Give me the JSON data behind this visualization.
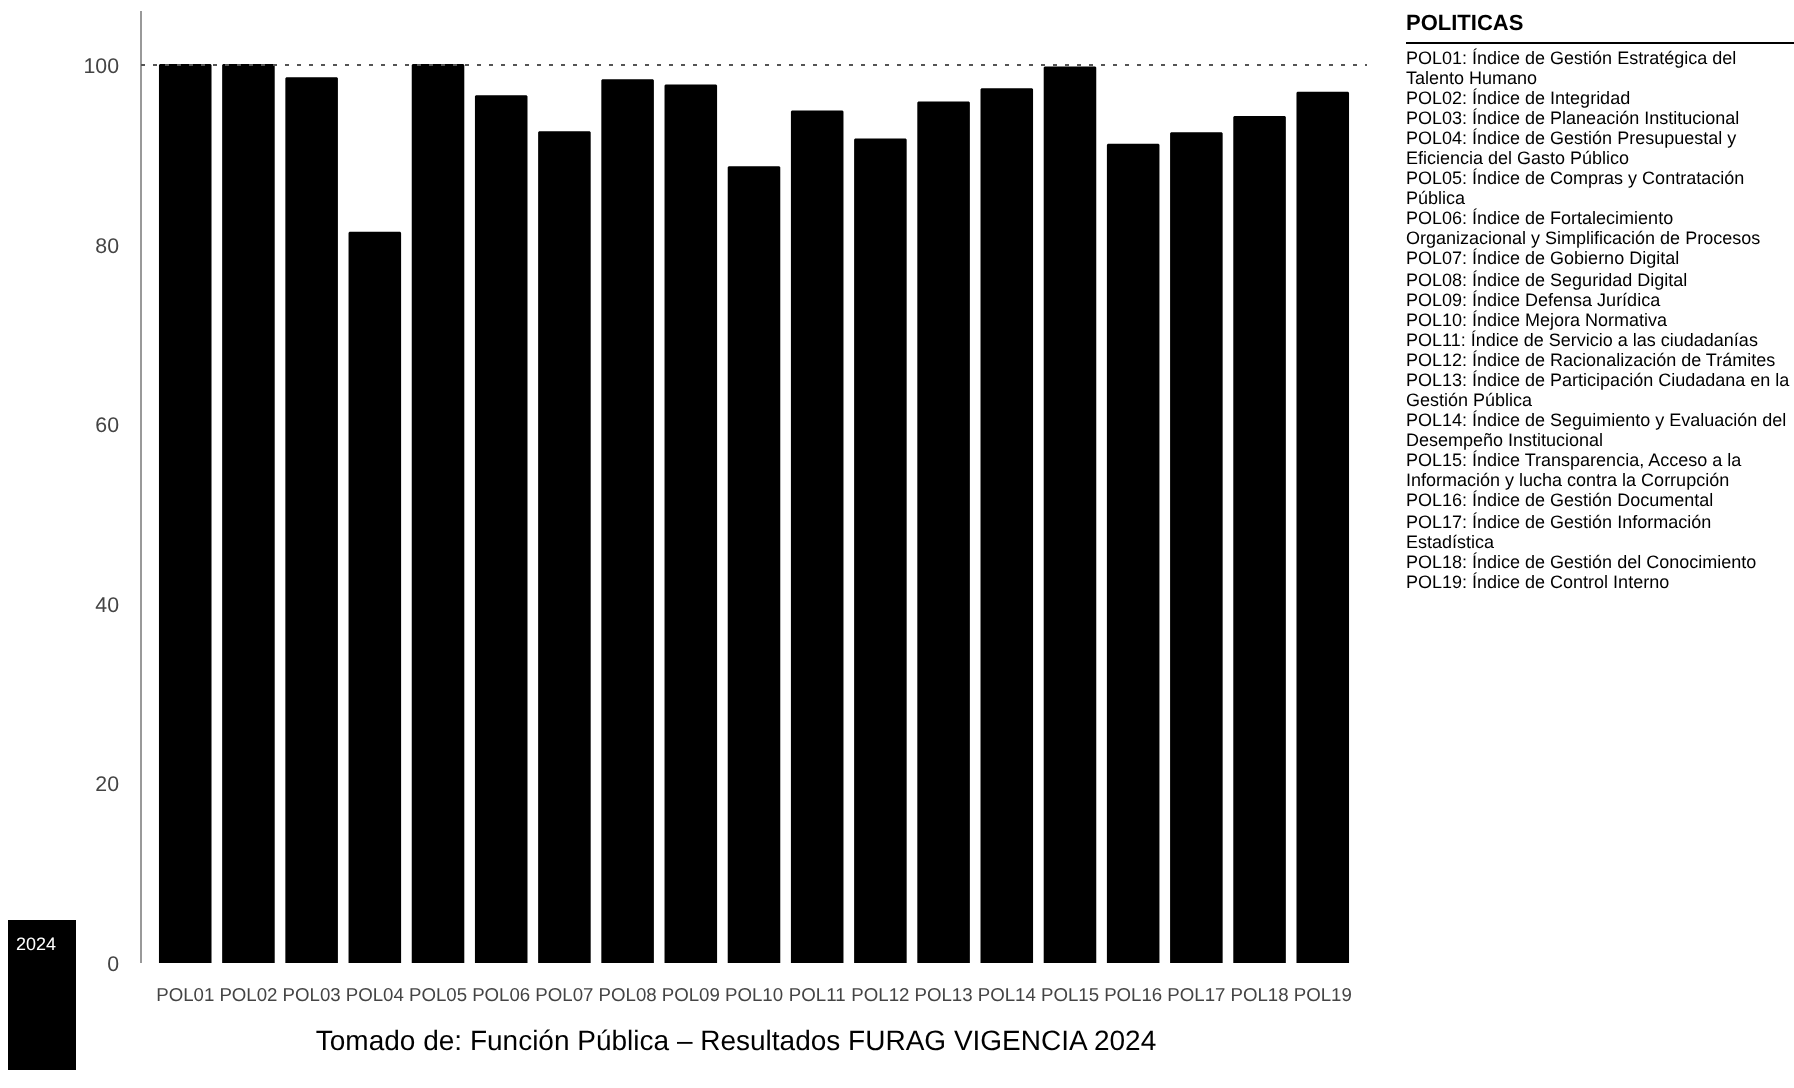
{
  "chart_data": {
    "type": "bar",
    "categories": [
      "POL01",
      "POL02",
      "POL03",
      "POL04",
      "POL05",
      "POL06",
      "POL07",
      "POL08",
      "POL09",
      "POL10",
      "POL11",
      "POL12",
      "POL13",
      "POL14",
      "POL15",
      "POL16",
      "POL17",
      "POL18",
      "POL19"
    ],
    "values": [
      100,
      100,
      98.5,
      81.3,
      100,
      96.5,
      92.5,
      98.3,
      97.7,
      88.6,
      94.8,
      91.7,
      95.8,
      97.3,
      99.7,
      91.1,
      92.4,
      94.2,
      96.9
    ],
    "color": "#000000",
    "ylim": [
      0,
      106
    ],
    "yticks": [
      0,
      20,
      40,
      60,
      80,
      100
    ],
    "grid": false,
    "ref_lines": [
      {
        "axis": "y",
        "value": 100,
        "line_style": "dotted",
        "color": "#555555"
      }
    ],
    "legend_title": "POLITICAS",
    "annotations": [
      "2024",
      "POL01: Índice de Gestión Estratégica del Talento Humano",
      "POL02: Índice de Integridad",
      "POL03: Índice de Planeación Institucional",
      "POL04: Índice de Gestión Presupuestal y Eficiencia del Gasto Público",
      "POL05: Índice de Compras y Contratación Pública",
      "POL06: Índice de Fortalecimiento Organizacional y Simplificación de Procesos",
      "POL07: Índice de Gobierno Digital",
      "POL08: Índice de Seguridad Digital",
      "POL09: Índice Defensa Jurídica",
      "POL10: Índice Mejora Normativa",
      "POL11: Índice de Servicio a las ciudadanías",
      "POL12: Índice de Racionalización de Trámites",
      "POL13: Índice de Participación Ciudadana en la Gestión Pública",
      "POL14: Índice de Seguimiento y Evaluación del Desempeño Institucional",
      "POL15: Índice Transparencia, Acceso a la Información y lucha contra la Corrupción",
      "POL16: Índice de Gestión Documental",
      "POL17: Índice de Gestión Información Estadística",
      "POL18: Índice de Gestión del Conocimiento",
      "POL19: Índice de Control Interno",
      "Tomado de: Función Pública – Resultados FURAG VIGENCIA 2024"
    ]
  }
}
